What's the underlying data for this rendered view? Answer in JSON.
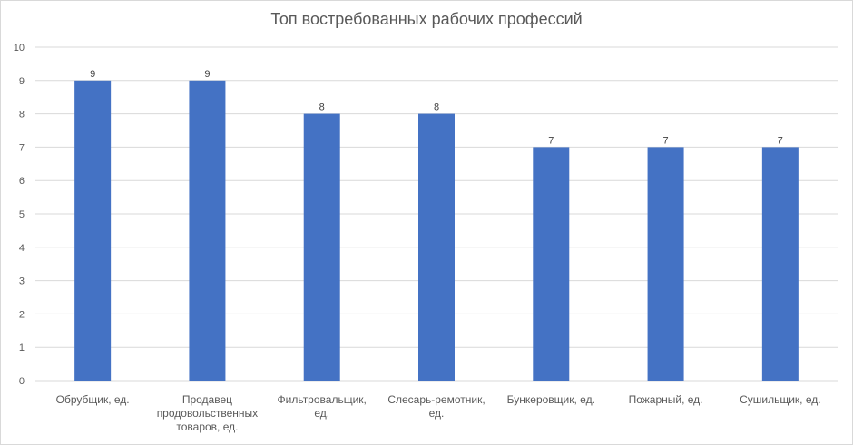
{
  "chart_data": {
    "type": "bar",
    "title": "Топ востребованных рабочих профессий",
    "categories": [
      "Обрубщик, ед.",
      "Продавец продовольственных товаров, ед.",
      "Фильтровальщик, ед.",
      "Слесарь-ремотник, ед.",
      "Бункеровщик, ед.",
      "Пожарный, ед.",
      "Сушильщик, ед."
    ],
    "category_lines": [
      [
        "Обрубщик, ед."
      ],
      [
        "Продавец",
        "продовольственных",
        "товаров, ед."
      ],
      [
        "Фильтровальщик,",
        "ед."
      ],
      [
        "Слесарь-ремотник,",
        "ед."
      ],
      [
        "Бункеровщик, ед."
      ],
      [
        "Пожарный, ед."
      ],
      [
        "Сушильщик, ед."
      ]
    ],
    "values": [
      9,
      9,
      8,
      8,
      7,
      7,
      7
    ],
    "data_labels": [
      "9",
      "9",
      "8",
      "8",
      "7",
      "7",
      "7"
    ],
    "xlabel": "",
    "ylabel": "",
    "ylim": [
      0,
      10
    ],
    "yticks": [
      0,
      1,
      2,
      3,
      4,
      5,
      6,
      7,
      8,
      9,
      10
    ],
    "grid": true,
    "legend": "none",
    "bar_color": "#4472c4"
  }
}
